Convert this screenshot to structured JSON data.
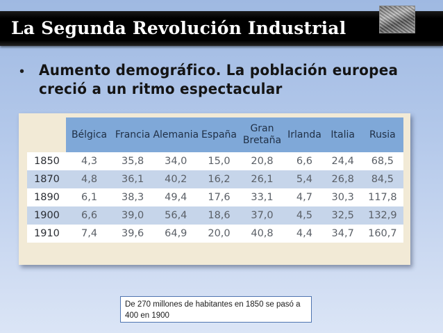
{
  "slide": {
    "title": "La Segunda Revolución Industrial",
    "title_image": "industrial-photo-thumbnail",
    "bullet": "•",
    "bullet_text": "Aumento demográfico. La población europea creció a un ritmo espectacular",
    "note": "De 270 millones de habitantes en 1850 se pasó a 400 en 1900"
  },
  "table": {
    "headers": [
      "",
      "Bélgica",
      "Francia",
      "Alemania",
      "España",
      "Gran Bretaña",
      "Irlanda",
      "Italia",
      "Rusia"
    ],
    "rows": [
      [
        "1850",
        "4,3",
        "35,8",
        "34,0",
        "15,0",
        "20,8",
        "6,6",
        "24,4",
        "68,5"
      ],
      [
        "1870",
        "4,8",
        "36,1",
        "40,2",
        "16,2",
        "26,1",
        "5,4",
        "26,8",
        "84,5"
      ],
      [
        "1890",
        "6,1",
        "38,3",
        "49,4",
        "17,6",
        "33,1",
        "4,7",
        "30,3",
        "117,8"
      ],
      [
        "1900",
        "6,6",
        "39,0",
        "56,4",
        "18,6",
        "37,0",
        "4,5",
        "32,5",
        "132,9"
      ],
      [
        "1910",
        "7,4",
        "39,6",
        "64,9",
        "20,0",
        "40,8",
        "4,4",
        "34,7",
        "160,7"
      ]
    ]
  },
  "colors": {
    "title_bar": "#000000",
    "header_row": "#7fa8d8",
    "row_alt": "#c6d5ea",
    "frame": "#f2ead6",
    "note_border": "#4f74b0"
  }
}
